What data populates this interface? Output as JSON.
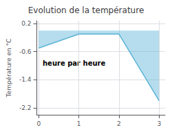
{
  "chart_data": {
    "type": "line",
    "title": "Evolution de la température",
    "annotation": "heure par heure",
    "ylabel": "Température en °C",
    "x": [
      0,
      1,
      2,
      3
    ],
    "values": [
      -0.5,
      -0.1,
      -0.1,
      -2.0
    ],
    "color": "#5ab4d6",
    "xlim": [
      -0.05,
      3.15
    ],
    "xticks": [
      0,
      1,
      2,
      3
    ],
    "ylim": [
      -2.4,
      0.28
    ],
    "yticks": [
      0.2,
      -0.6,
      -1.4,
      -2.2
    ],
    "grid": true
  }
}
